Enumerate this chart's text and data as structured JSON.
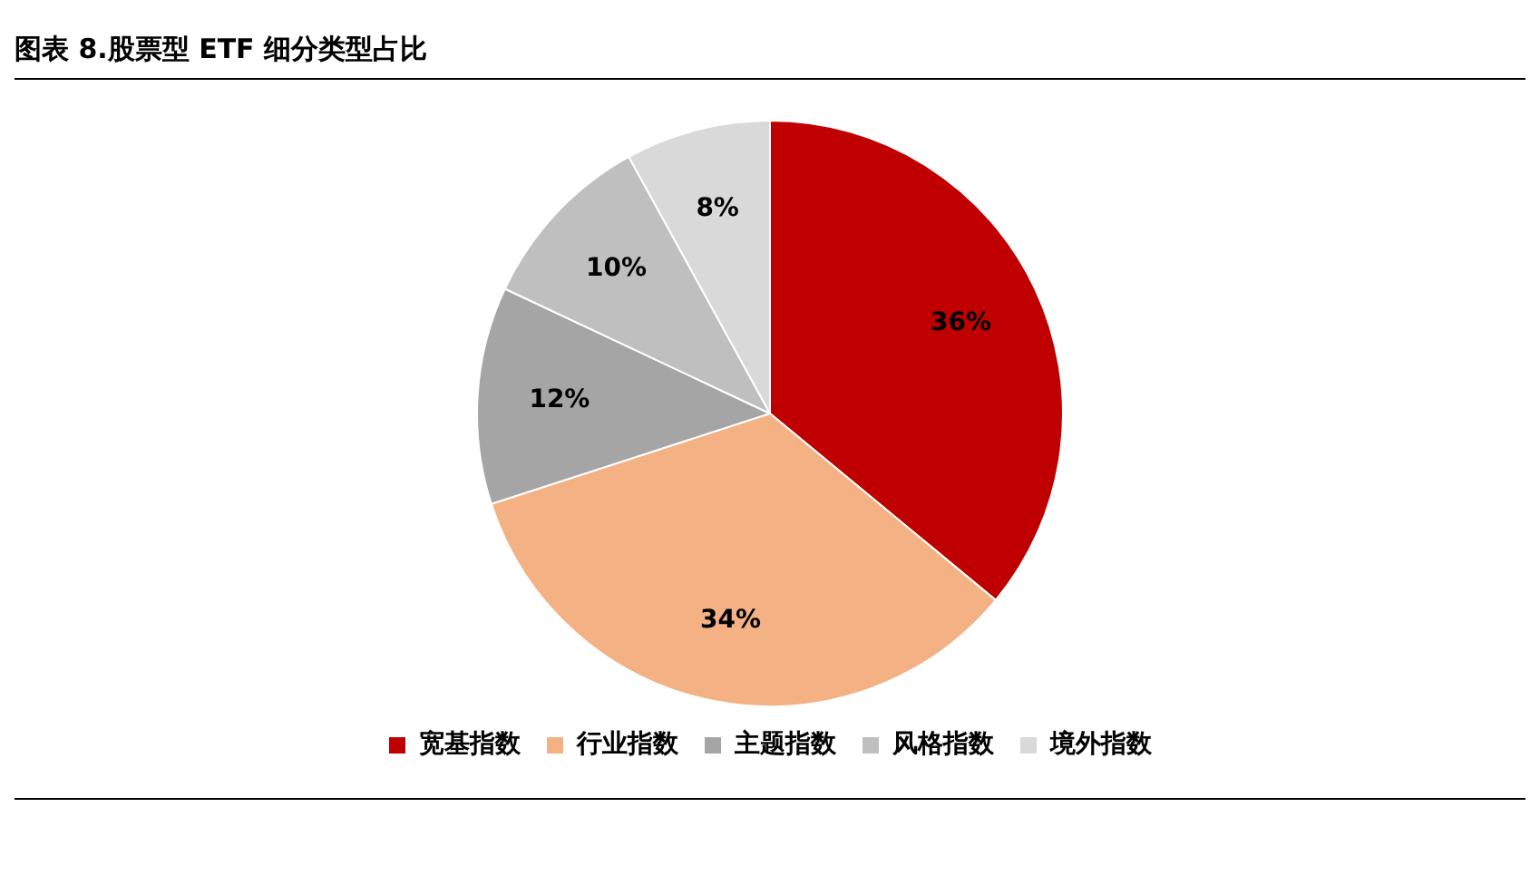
{
  "chart_data": {
    "type": "pie",
    "title": "图表 8.股票型 ETF 细分类型占比",
    "categories": [
      "宽基指数",
      "行业指数",
      "主题指数",
      "风格指数",
      "境外指数"
    ],
    "values": [
      36,
      34,
      12,
      10,
      8
    ],
    "value_labels": [
      "36%",
      "34%",
      "12%",
      "10%",
      "8%"
    ],
    "colors": [
      "#c00000",
      "#f4b183",
      "#a5a5a5",
      "#bfbfbf",
      "#d9d9d9"
    ],
    "legend": "bottom"
  }
}
